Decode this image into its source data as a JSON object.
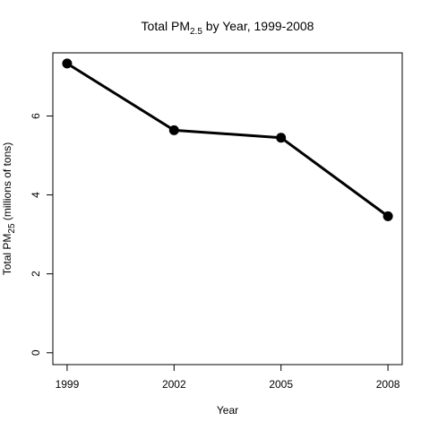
{
  "chart_data": {
    "type": "line",
    "title": {
      "prefix": "Total PM",
      "subscript": "2.5",
      "suffix": " by Year, 1999-2008"
    },
    "xlabel": "Year",
    "ylabel": {
      "prefix": "Total PM",
      "subscript": "25",
      "suffix": " (millions of tons)"
    },
    "x": [
      1999,
      2002,
      2005,
      2008
    ],
    "x_tick_labels": [
      "1999",
      "2002",
      "2005",
      "2008"
    ],
    "series": [
      {
        "values": [
          7.33,
          5.64,
          5.45,
          3.46
        ]
      }
    ],
    "y_ticks": [
      0,
      2,
      4,
      6
    ],
    "y_tick_labels": [
      "0",
      "2",
      "4",
      "6"
    ],
    "ylim": [
      -0.3,
      7.6
    ],
    "xlim": [
      1998.6,
      2008.4
    ],
    "markers": "filled-circle",
    "line_color": "#000000",
    "grid": false,
    "legend": "none"
  }
}
